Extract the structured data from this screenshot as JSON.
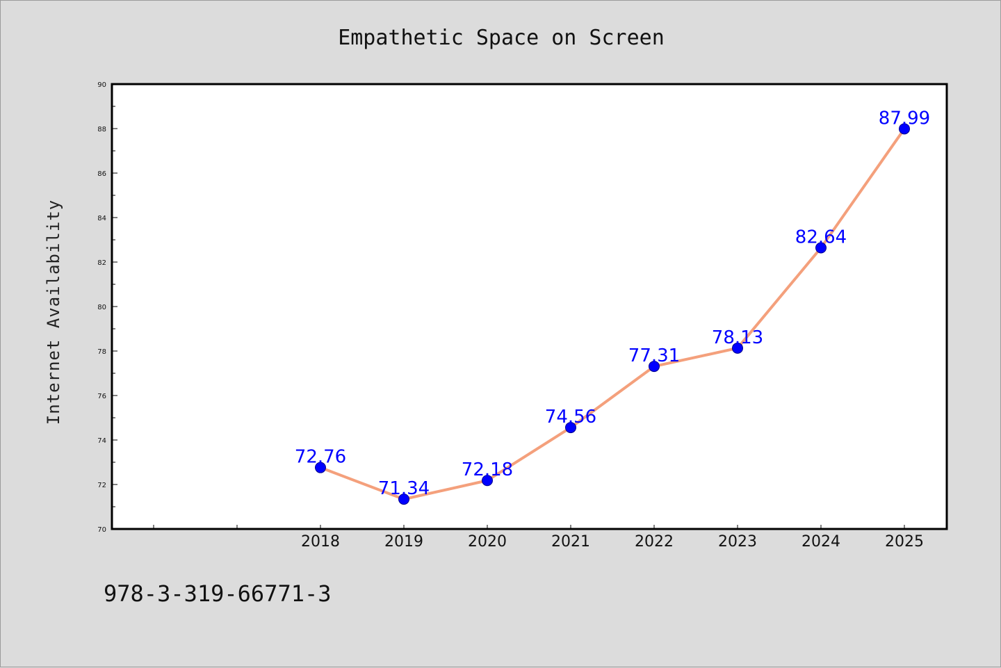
{
  "chart_data": {
    "type": "line",
    "title": "Empathetic Space on Screen",
    "xlabel": "",
    "ylabel": "Internet Availability",
    "x": [
      "2018",
      "2019",
      "2020",
      "2021",
      "2022",
      "2023",
      "2024",
      "2025"
    ],
    "series": [
      {
        "values": [
          72.76,
          71.34,
          72.18,
          74.56,
          77.31,
          78.13,
          82.64,
          87.99
        ],
        "data_labels": [
          "72.76",
          "71.34",
          "72.18",
          "74.56",
          "77.31",
          "78.13",
          "82.64",
          "87.99"
        ]
      }
    ],
    "ylim": [
      70,
      90
    ],
    "yticks": [
      "70",
      "72",
      "74",
      "76",
      "78",
      "80",
      "82",
      "84",
      "86",
      "88",
      "90"
    ],
    "grid": false,
    "line_color": "#f4a07c",
    "marker_color": "#0000ff",
    "label_color": "#0000ff"
  },
  "footer": {
    "isbn": "978-3-319-66771-3"
  }
}
